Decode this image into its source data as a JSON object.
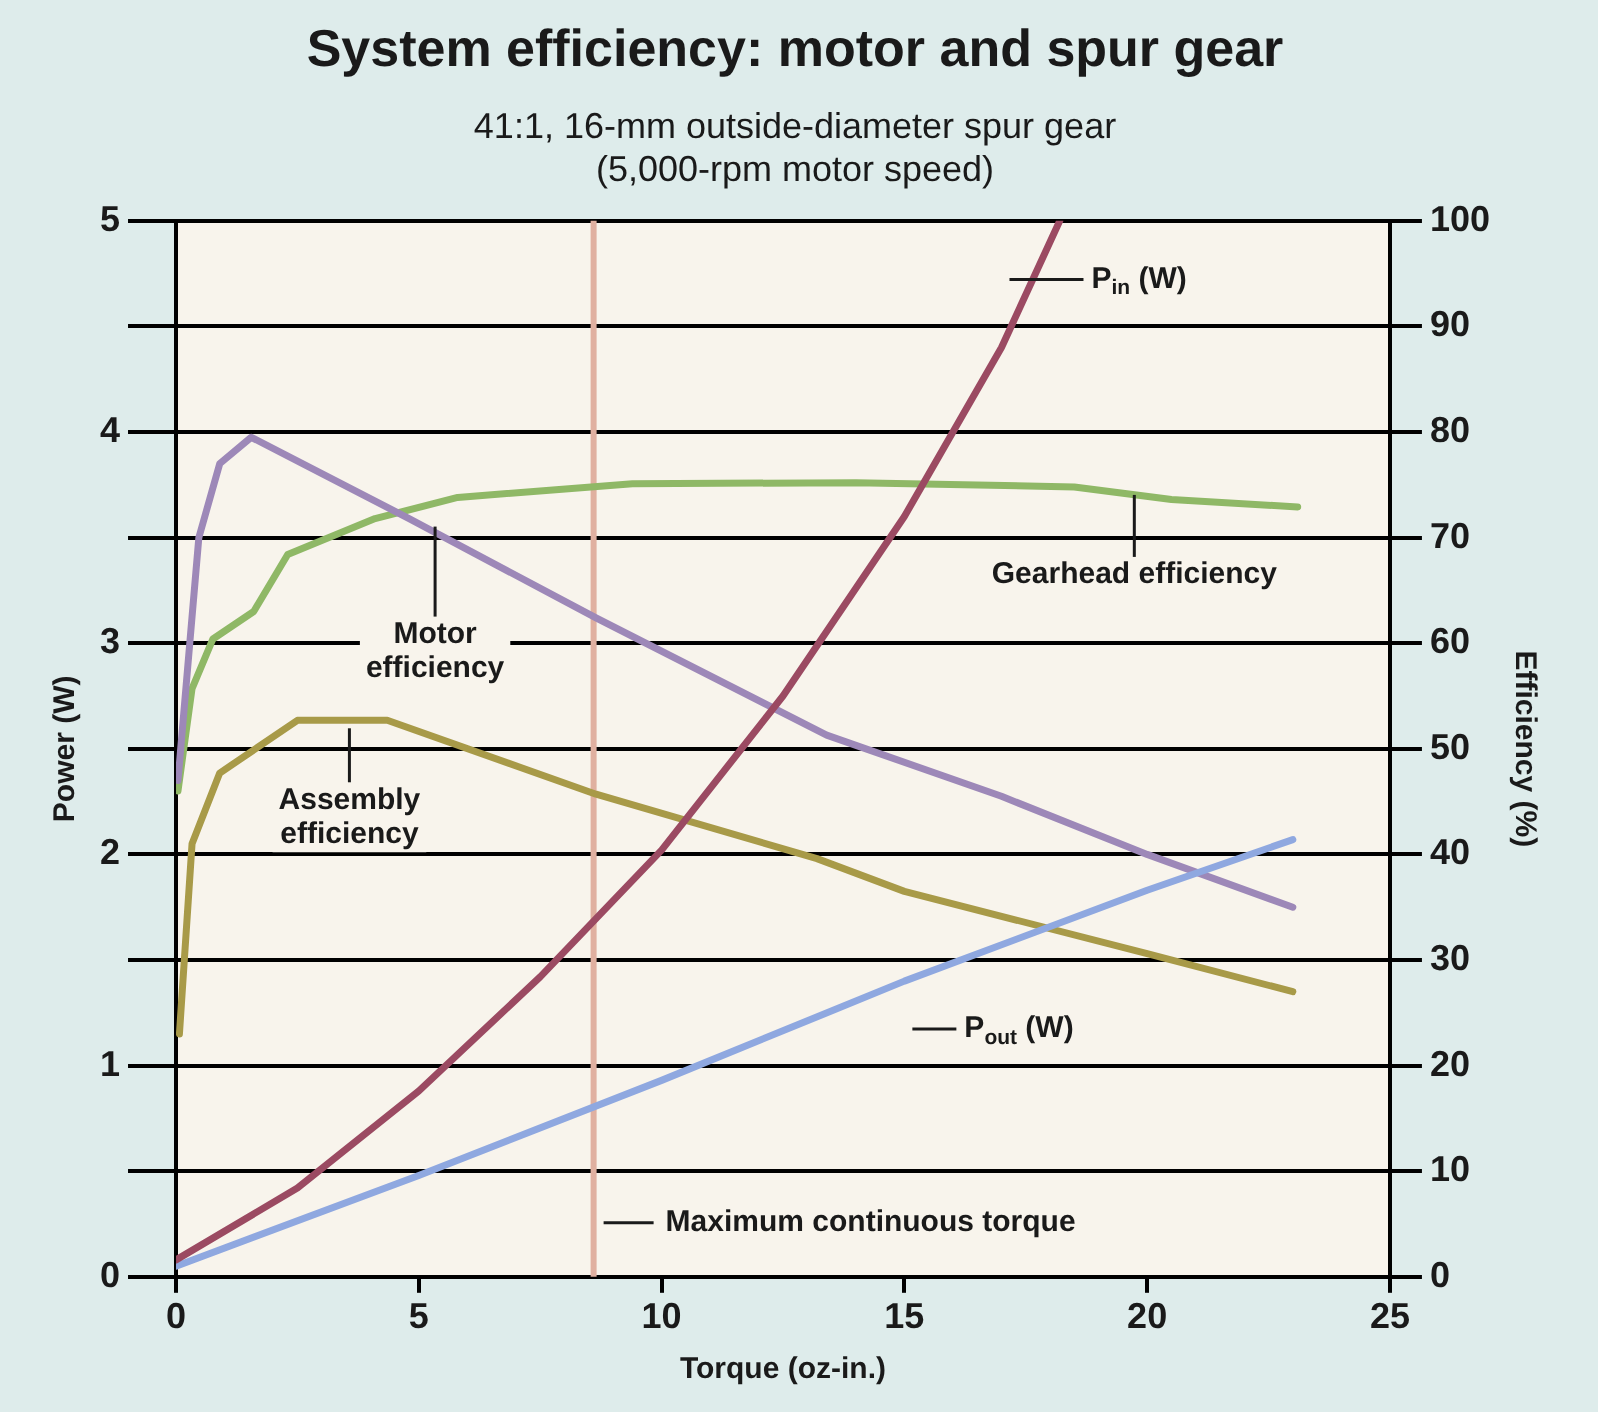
{
  "chart_data": {
    "type": "line",
    "title": "System efficiency: motor and spur gear",
    "subtitle": "41:1, 16-mm outside-diameter spur gear\n(5,000-rpm motor speed)",
    "xlabel": "Torque (oz-in.)",
    "ylabel": "Power (W)",
    "y2label": "Efficiency (%)",
    "xlim": [
      0,
      25
    ],
    "xticks": [
      0,
      5,
      10,
      15,
      20,
      25
    ],
    "ylim": [
      0,
      5
    ],
    "yticks": [
      0,
      {
        "value": 0.5,
        "label": null
      },
      1,
      {
        "value": 1.5,
        "label": null
      },
      2,
      {
        "value": 2.5,
        "label": null
      },
      3,
      {
        "value": 3.5,
        "label": null
      },
      4,
      {
        "value": 4.5,
        "label": null
      },
      5
    ],
    "y2lim": [
      0,
      100
    ],
    "y2ticks": [
      0,
      10,
      20,
      30,
      40,
      50,
      60,
      70,
      80,
      90,
      100
    ],
    "grid": "y",
    "legend": false,
    "marker": "none",
    "line_style": "solid",
    "series": [
      {
        "name": "P$_{in}$ (W)",
        "color": "#9b4a62",
        "x": [
          0,
          2.5,
          5,
          7.5,
          10,
          12.5,
          15,
          17,
          18.2
        ],
        "values": [
          0.08,
          0.42,
          0.88,
          1.42,
          2.02,
          2.75,
          3.6,
          4.4,
          5.0
        ]
      },
      {
        "name": "P$_{out}$ (W)",
        "color": "#8fa8e0",
        "x": [
          0,
          5,
          10,
          15,
          20,
          23
        ],
        "values": [
          0.05,
          0.48,
          0.93,
          1.4,
          1.83,
          2.07
        ]
      },
      {
        "name": "Motor efficiency",
        "color": "#9d88b8",
        "axis": "y2",
        "x": [
          0.04,
          0.47,
          0.9,
          1.55,
          4.8,
          8.65,
          13.4,
          17,
          20,
          23
        ],
        "values": [
          47,
          70,
          77,
          79.5,
          71.8,
          62.4,
          51.3,
          45.5,
          40,
          35
        ]
      },
      {
        "name": "Gearhead efficiency",
        "color": "#8fb866",
        "axis": "y2",
        "x": [
          0.04,
          0.33,
          0.76,
          1.6,
          2.3,
          4.1,
          5.8,
          9.4,
          14,
          18.5,
          20.5,
          23.1
        ],
        "values": [
          46,
          55.7,
          60.4,
          63,
          68.4,
          71.8,
          73.8,
          75.1,
          75.2,
          74.8,
          73.6,
          72.9
        ]
      },
      {
        "name": "Assembly efficiency",
        "color": "#a89a48",
        "axis": "y2",
        "x": [
          0.07,
          0.33,
          0.9,
          2.5,
          4.35,
          8.65,
          13.2,
          15,
          20,
          23
        ],
        "values": [
          23,
          41,
          47.7,
          52.7,
          52.7,
          45.7,
          39.6,
          36.5,
          30.6,
          27
        ]
      }
    ],
    "ref_lines": [
      {
        "axis": "x",
        "value": 8.6,
        "label": "Maximum continuous torque",
        "color": "#e0b0a0"
      }
    ]
  }
}
